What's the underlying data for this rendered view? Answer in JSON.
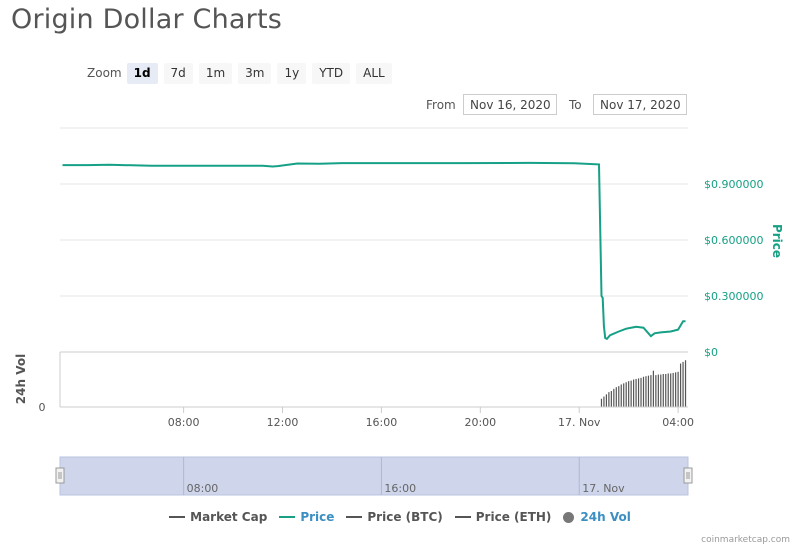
{
  "title": "Origin Dollar Charts",
  "zoom": {
    "label": "Zoom",
    "buttons": [
      "1d",
      "7d",
      "1m",
      "3m",
      "1y",
      "YTD",
      "ALL"
    ],
    "active": "1d"
  },
  "range": {
    "from_label": "From",
    "from_value": "Nov 16, 2020",
    "to_label": "To",
    "to_value": "Nov 17, 2020"
  },
  "legend": [
    {
      "label": "Market Cap",
      "color": "#555555",
      "kind": "line",
      "active": false
    },
    {
      "label": "Price",
      "color": "#16a085",
      "kind": "line",
      "active": true
    },
    {
      "label": "Price (BTC)",
      "color": "#555555",
      "kind": "line",
      "active": false
    },
    {
      "label": "Price (ETH)",
      "color": "#555555",
      "kind": "line",
      "active": false
    },
    {
      "label": "24h Vol",
      "color": "#777777",
      "kind": "dot",
      "active": true
    }
  ],
  "credit": "coinmarketcap.com",
  "colors": {
    "price": "#16a085",
    "volume": "#555555",
    "navigator_fill": "#cfd6ec",
    "grid": "#e6e6e6"
  },
  "chart_data": {
    "type": "line",
    "title": "",
    "xlabel": "",
    "ylabel": "Price",
    "volume_label": "24h Vol",
    "volume_tick": "0",
    "xlim": [
      3.0,
      28.4
    ],
    "ylim": [
      0,
      1.2
    ],
    "y_ticks": [
      {
        "value": 0,
        "label": "$0"
      },
      {
        "value": 0.3,
        "label": "$0.300000"
      },
      {
        "value": 0.6,
        "label": "$0.600000"
      },
      {
        "value": 0.9,
        "label": "$0.900000"
      }
    ],
    "x_ticks": [
      {
        "value": 8,
        "label": "08:00"
      },
      {
        "value": 12,
        "label": "12:00"
      },
      {
        "value": 16,
        "label": "16:00"
      },
      {
        "value": 20,
        "label": "20:00"
      },
      {
        "value": 24,
        "label": "17. Nov"
      },
      {
        "value": 28,
        "label": "04:00"
      }
    ],
    "navigator_ticks": [
      {
        "value": 8,
        "label": "08:00"
      },
      {
        "value": 16,
        "label": "16:00"
      },
      {
        "value": 24,
        "label": "17. Nov"
      }
    ],
    "series": [
      {
        "name": "Price",
        "x": [
          3.1,
          4.1,
          5.0,
          6.7,
          9.5,
          11.2,
          11.6,
          11.8,
          12.6,
          13.5,
          14.4,
          17.0,
          19.2,
          22.0,
          23.8,
          24.8,
          24.9,
          24.95,
          25.0,
          25.05,
          25.12,
          25.25,
          25.6,
          25.9,
          26.3,
          26.6,
          26.9,
          27.05,
          27.3,
          27.7,
          28.0,
          28.2,
          28.3
        ],
        "y": [
          1.001,
          1.001,
          1.003,
          0.998,
          0.998,
          0.998,
          0.994,
          0.996,
          1.01,
          1.009,
          1.012,
          1.012,
          1.012,
          1.013,
          1.011,
          1.005,
          0.3,
          0.29,
          0.14,
          0.075,
          0.07,
          0.09,
          0.11,
          0.125,
          0.135,
          0.13,
          0.085,
          0.1,
          0.105,
          0.11,
          0.12,
          0.165,
          0.165
        ]
      },
      {
        "name": "24h Vol",
        "x": [
          24.9,
          25.0,
          25.1,
          25.2,
          25.3,
          25.4,
          25.5,
          25.6,
          25.7,
          25.8,
          25.9,
          26.0,
          26.1,
          26.2,
          26.3,
          26.4,
          26.5,
          26.6,
          26.7,
          26.8,
          26.9,
          27.0,
          27.1,
          27.2,
          27.3,
          27.4,
          27.5,
          27.6,
          27.7,
          27.8,
          27.9,
          28.0,
          28.1,
          28.2,
          28.3
        ],
        "y": [
          0.15,
          0.19,
          0.23,
          0.27,
          0.29,
          0.33,
          0.36,
          0.38,
          0.41,
          0.43,
          0.45,
          0.47,
          0.48,
          0.5,
          0.51,
          0.52,
          0.53,
          0.55,
          0.56,
          0.57,
          0.58,
          0.66,
          0.58,
          0.59,
          0.59,
          0.6,
          0.6,
          0.61,
          0.61,
          0.62,
          0.63,
          0.64,
          0.79,
          0.82,
          0.85
        ]
      }
    ]
  }
}
